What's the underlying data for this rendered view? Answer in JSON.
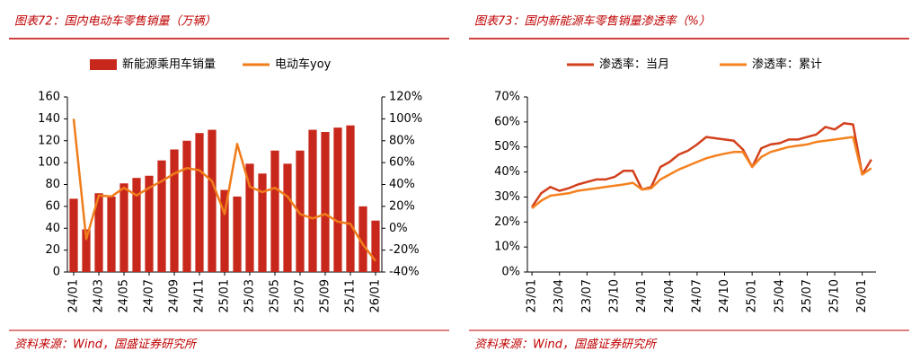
{
  "chart_data": [
    {
      "type": "bar",
      "title": "图表72：国内电动车零售销量（万辆）",
      "source": "资料来源：Wind，国盛证券研究所",
      "categories": [
        "24/01",
        null,
        "24/03",
        null,
        "24/05",
        null,
        "24/07",
        null,
        "24/09",
        null,
        "24/11",
        null,
        "25/01",
        null,
        "25/03",
        null,
        "25/05",
        null,
        "25/07",
        null,
        "25/09",
        null,
        "25/11",
        null,
        "26/01"
      ],
      "series": [
        {
          "name": "新能源乘用车销量",
          "type": "bar",
          "color": "#c8281c",
          "values": [
            67,
            39,
            72,
            69,
            81,
            86,
            88,
            102,
            112,
            120,
            127,
            130,
            75,
            69,
            99,
            90,
            111,
            99,
            111,
            130,
            128,
            132,
            134,
            60,
            47
          ]
        },
        {
          "name": "电动车yoy",
          "type": "line",
          "axis": "y2",
          "color": "#f07c1a",
          "values": [
            100,
            -10,
            30,
            29,
            37,
            30,
            37,
            43,
            50,
            55,
            53,
            43,
            13,
            77,
            38,
            33,
            37,
            29,
            13,
            9,
            13,
            6,
            4,
            -15,
            -30
          ]
        }
      ],
      "ylim": [
        0,
        160
      ],
      "yticks": [
        0,
        20,
        40,
        60,
        80,
        100,
        120,
        140,
        160
      ],
      "y2lim": [
        -40,
        120
      ],
      "y2ticks": [
        {
          "value": -40,
          "label": "-40%"
        },
        {
          "value": -20,
          "label": "-20%"
        },
        {
          "value": 0,
          "label": "0%"
        },
        {
          "value": 20,
          "label": "20%"
        },
        {
          "value": 40,
          "label": "40%"
        },
        {
          "value": 60,
          "label": "60%"
        },
        {
          "value": 80,
          "label": "80%"
        },
        {
          "value": 100,
          "label": "100%"
        },
        {
          "value": 120,
          "label": "120%"
        }
      ]
    },
    {
      "type": "line",
      "title": "图表73：国内新能源车零售销量渗透率（%）",
      "source": "资料来源：Wind，国盛证券研究所",
      "categories": [
        "23/01",
        null,
        null,
        "23/04",
        null,
        null,
        "23/07",
        null,
        null,
        "23/10",
        null,
        null,
        "24/01",
        null,
        null,
        "24/04",
        null,
        null,
        "24/07",
        null,
        null,
        "24/10",
        null,
        null,
        "25/01",
        null,
        null,
        "25/04",
        null,
        null,
        "25/07",
        null,
        null,
        "25/10",
        null,
        null,
        "26/01",
        null
      ],
      "series": [
        {
          "name": "渗透率：当月",
          "type": "line",
          "color": "#d2401c",
          "values": [
            26,
            31.5,
            34,
            32.5,
            33.5,
            35,
            36,
            37,
            37,
            38,
            40.5,
            40.5,
            33,
            34,
            42,
            44,
            47,
            48.5,
            51,
            54,
            53.5,
            53,
            52.5,
            49,
            42,
            49.5,
            51,
            51.5,
            53,
            53,
            54,
            55,
            58,
            57,
            59.5,
            59,
            39,
            45
          ]
        },
        {
          "name": "渗透率：累计",
          "type": "line",
          "color": "#f58220",
          "values": [
            25.5,
            28.5,
            30.5,
            31,
            31.5,
            32.5,
            33,
            33.5,
            34,
            34.5,
            35,
            35.7,
            33,
            33.5,
            37,
            39,
            41,
            42.5,
            44,
            45.5,
            46.5,
            47.3,
            48,
            48,
            42,
            46,
            48,
            49,
            50,
            50.5,
            51,
            52,
            52.5,
            53,
            53.5,
            54,
            39,
            41.5
          ]
        }
      ],
      "ylim": [
        0,
        70
      ],
      "yticks": [
        {
          "value": 0,
          "label": "0%"
        },
        {
          "value": 10,
          "label": "10%"
        },
        {
          "value": 20,
          "label": "20%"
        },
        {
          "value": 30,
          "label": "30%"
        },
        {
          "value": 40,
          "label": "40%"
        },
        {
          "value": 50,
          "label": "50%"
        },
        {
          "value": 60,
          "label": "60%"
        },
        {
          "value": 70,
          "label": "70%"
        }
      ]
    }
  ]
}
